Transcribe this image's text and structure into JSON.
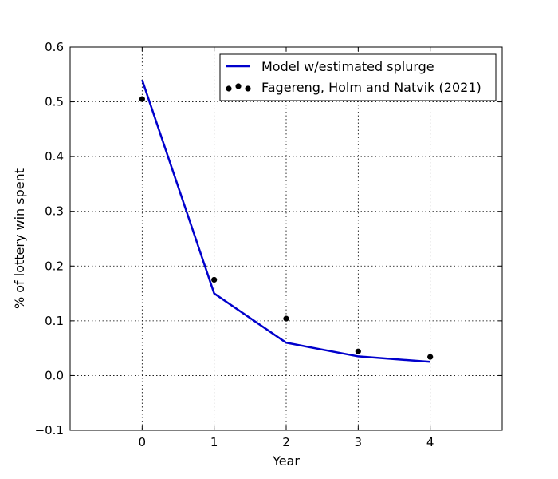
{
  "chart_data": {
    "type": "line",
    "xlabel": "Year",
    "ylabel": "% of lottery win spent",
    "xlim": [
      -1,
      5
    ],
    "ylim": [
      -0.1,
      0.6
    ],
    "x_ticks": [
      "0",
      "1",
      "2",
      "3",
      "4"
    ],
    "y_ticks": [
      "−0.1",
      "0.0",
      "0.1",
      "0.2",
      "0.3",
      "0.4",
      "0.5",
      "0.6"
    ],
    "grid": true,
    "legend_position": "top-right",
    "series": [
      {
        "name": "Model w/estimated splurge",
        "kind": "line",
        "color": "#0000cc",
        "x": [
          0,
          1,
          2,
          3,
          4
        ],
        "y": [
          0.54,
          0.15,
          0.06,
          0.035,
          0.025
        ]
      },
      {
        "name": "Fagereng, Holm and Natvik (2021)",
        "kind": "scatter",
        "color": "#000000",
        "x": [
          0,
          1,
          2,
          3,
          4
        ],
        "y": [
          0.505,
          0.175,
          0.104,
          0.044,
          0.034
        ]
      }
    ]
  }
}
